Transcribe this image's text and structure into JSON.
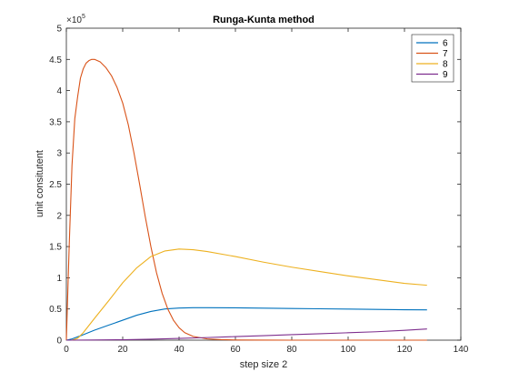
{
  "chart_data": {
    "type": "line",
    "title": "Runga-Kunta method",
    "xlabel": "step size 2",
    "ylabel": "unit consitutent",
    "xlim": [
      0,
      140
    ],
    "ylim": [
      0,
      500000
    ],
    "x_ticks": [
      0,
      20,
      40,
      60,
      80,
      100,
      120,
      140
    ],
    "y_ticks": [
      0,
      0.5,
      1,
      1.5,
      2,
      2.5,
      3,
      3.5,
      4,
      4.5,
      5
    ],
    "y_exponent_label": "×10",
    "y_exponent_power": "5",
    "grid": false,
    "legend_position": "top-right",
    "colors": {
      "6": "#0072BD",
      "7": "#D95319",
      "8": "#EDB120",
      "9": "#7E2F8E",
      "axes": "#262626"
    },
    "series": [
      {
        "name": "6",
        "color": "#0072BD",
        "x": [
          0,
          2,
          5,
          10,
          15,
          20,
          25,
          30,
          35,
          40,
          45,
          50,
          60,
          70,
          80,
          90,
          100,
          110,
          120,
          128
        ],
        "y": [
          0,
          2000,
          7000,
          16000,
          24000,
          32000,
          40000,
          46000,
          50000,
          51500,
          52000,
          52000,
          51800,
          51300,
          50800,
          50300,
          49800,
          49300,
          48800,
          48500
        ]
      },
      {
        "name": "7",
        "color": "#D95319",
        "x": [
          0,
          1,
          2,
          3,
          4,
          5,
          6,
          7,
          8,
          9,
          10,
          11,
          12,
          14,
          16,
          18,
          20,
          22,
          24,
          26,
          28,
          30,
          32,
          34,
          36,
          38,
          40,
          42,
          45,
          50,
          55,
          60,
          70,
          80,
          100,
          128
        ],
        "y": [
          0,
          150000,
          280000,
          355000,
          390000,
          420000,
          435000,
          444000,
          448000,
          450000,
          450000,
          448000,
          446000,
          437000,
          424000,
          405000,
          380000,
          345000,
          300000,
          250000,
          198000,
          150000,
          108000,
          75000,
          50000,
          32000,
          20000,
          12000,
          6000,
          2000,
          800,
          300,
          100,
          0,
          0,
          0
        ]
      },
      {
        "name": "8",
        "color": "#EDB120",
        "x": [
          0,
          2,
          4,
          6,
          10,
          15,
          20,
          25,
          30,
          35,
          40,
          45,
          50,
          60,
          70,
          80,
          90,
          100,
          110,
          120,
          128
        ],
        "y": [
          0,
          0,
          3000,
          12000,
          35000,
          63000,
          92000,
          116000,
          134000,
          143000,
          146000,
          145000,
          142000,
          134000,
          125000,
          117000,
          110000,
          103000,
          97000,
          91000,
          88000
        ]
      },
      {
        "name": "9",
        "color": "#7E2F8E",
        "x": [
          0,
          10,
          20,
          30,
          40,
          50,
          60,
          70,
          80,
          90,
          100,
          110,
          120,
          128
        ],
        "y": [
          0,
          200,
          700,
          1500,
          2800,
          4200,
          5700,
          7200,
          8800,
          10300,
          11900,
          13500,
          15800,
          18000
        ]
      }
    ]
  }
}
